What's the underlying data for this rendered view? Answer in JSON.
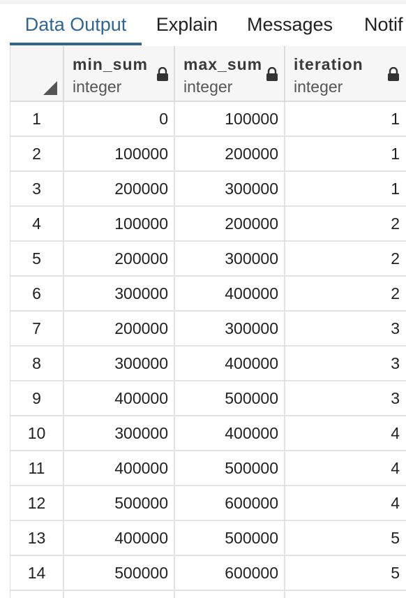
{
  "tabs": [
    {
      "label": "Data Output",
      "active": true
    },
    {
      "label": "Explain",
      "active": false
    },
    {
      "label": "Messages",
      "active": false
    },
    {
      "label": "Notif",
      "active": false
    }
  ],
  "columns": [
    {
      "name": "min_sum",
      "type": "integer",
      "icon": "lock-icon"
    },
    {
      "name": "max_sum",
      "type": "integer",
      "icon": "lock-icon"
    },
    {
      "name": "iteration",
      "type": "integer",
      "icon": "lock-icon"
    }
  ],
  "rows": [
    {
      "num": "1",
      "min_sum": "0",
      "max_sum": "100000",
      "iteration": "1"
    },
    {
      "num": "2",
      "min_sum": "100000",
      "max_sum": "200000",
      "iteration": "1"
    },
    {
      "num": "3",
      "min_sum": "200000",
      "max_sum": "300000",
      "iteration": "1"
    },
    {
      "num": "4",
      "min_sum": "100000",
      "max_sum": "200000",
      "iteration": "2"
    },
    {
      "num": "5",
      "min_sum": "200000",
      "max_sum": "300000",
      "iteration": "2"
    },
    {
      "num": "6",
      "min_sum": "300000",
      "max_sum": "400000",
      "iteration": "2"
    },
    {
      "num": "7",
      "min_sum": "200000",
      "max_sum": "300000",
      "iteration": "3"
    },
    {
      "num": "8",
      "min_sum": "300000",
      "max_sum": "400000",
      "iteration": "3"
    },
    {
      "num": "9",
      "min_sum": "400000",
      "max_sum": "500000",
      "iteration": "3"
    },
    {
      "num": "10",
      "min_sum": "300000",
      "max_sum": "400000",
      "iteration": "4"
    },
    {
      "num": "11",
      "min_sum": "400000",
      "max_sum": "500000",
      "iteration": "4"
    },
    {
      "num": "12",
      "min_sum": "500000",
      "max_sum": "600000",
      "iteration": "4"
    },
    {
      "num": "13",
      "min_sum": "400000",
      "max_sum": "500000",
      "iteration": "5"
    },
    {
      "num": "14",
      "min_sum": "500000",
      "max_sum": "600000",
      "iteration": "5"
    },
    {
      "num": "",
      "min_sum": "",
      "max_sum": "",
      "iteration": ""
    }
  ],
  "colors": {
    "accent": "#326690",
    "header_bg": "#f6f6f6",
    "grid_line": "#e3e3e3"
  }
}
